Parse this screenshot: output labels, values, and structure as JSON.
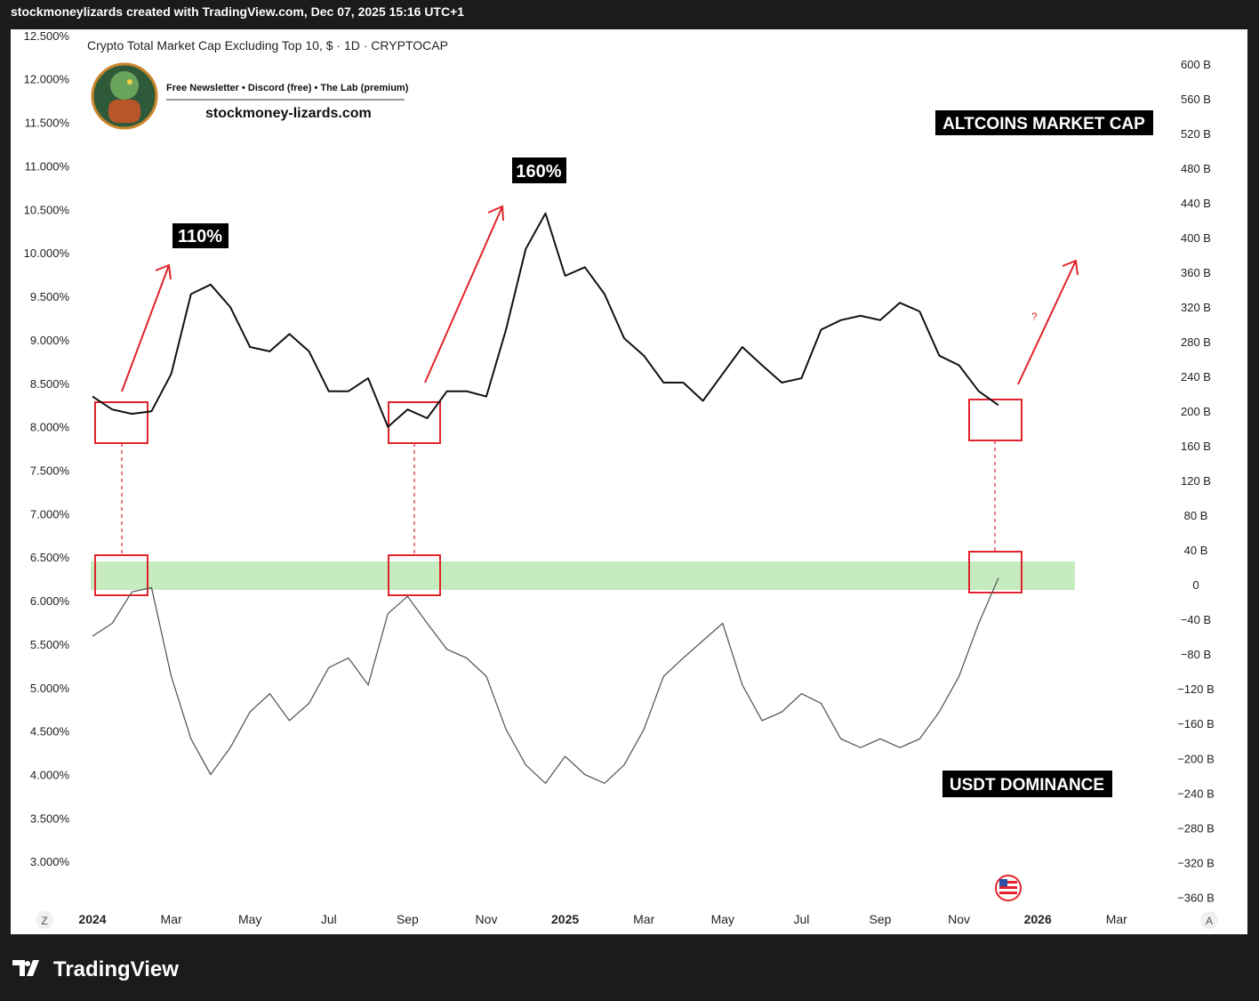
{
  "header": "stockmoneylizards created with TradingView.com, Dec 07, 2025 15:16 UTC+1",
  "footer": "TradingView",
  "controls": [
    "Z",
    "A"
  ],
  "chart_data": {
    "type": "line",
    "title": "Crypto Total Market Cap Excluding Top 10, $ · 1D · CRYPTOCAP",
    "subtitle": "Free Newsletter • Discord (free) • The Lab (premium)",
    "annotations": [
      "stockmoney-lizards.com",
      "ALTCOINS MARKET CAP",
      "110%",
      "160%",
      "USDT DOMINANCE",
      "?"
    ],
    "categories": [
      "2024",
      null,
      null,
      null,
      "Mar",
      null,
      null,
      null,
      "May",
      null,
      null,
      null,
      "Jul",
      null,
      null,
      null,
      "Sep",
      null,
      null,
      null,
      "Nov",
      null,
      null,
      null,
      "2025",
      null,
      null,
      null,
      "Mar",
      null,
      null,
      null,
      "May",
      null,
      null,
      null,
      "Jul",
      null,
      null,
      null,
      "Sep",
      null,
      null,
      null,
      "Nov",
      null,
      null,
      null,
      "2026",
      null,
      null,
      null,
      "Mar",
      null
    ],
    "series": [
      {
        "name": "ALTCOINS MARKET CAP",
        "color": "#111111",
        "axis": "y2",
        "values": [
          217,
          202,
          197,
          200,
          243,
          335,
          346,
          320,
          274,
          269,
          289,
          269,
          223,
          223,
          238,
          182,
          202,
          192,
          223,
          223,
          217,
          294,
          387,
          428,
          356,
          366,
          335,
          284,
          264,
          233,
          233,
          212,
          243,
          274,
          253,
          233,
          238,
          294,
          305,
          310,
          305,
          325,
          315,
          264,
          253,
          223,
          207,
          null,
          null,
          null,
          null,
          null,
          null,
          null
        ]
      },
      {
        "name": "USDT DOMINANCE",
        "color": "#5a5a5a",
        "values": [
          5.59,
          5.74,
          6.1,
          6.15,
          5.13,
          4.41,
          4.0,
          4.31,
          4.72,
          4.93,
          4.62,
          4.82,
          5.23,
          5.34,
          5.03,
          5.85,
          6.05,
          5.74,
          5.44,
          5.34,
          5.13,
          4.52,
          4.11,
          3.9,
          4.21,
          4.0,
          3.9,
          4.11,
          4.52,
          5.13,
          5.34,
          5.54,
          5.74,
          5.03,
          4.62,
          4.72,
          4.93,
          4.82,
          4.41,
          4.31,
          4.41,
          4.31,
          4.41,
          4.72,
          5.13,
          5.74,
          6.26,
          null,
          null,
          null,
          null,
          null,
          null,
          null
        ]
      }
    ],
    "ylim": [
      2.47,
      12.55
    ],
    "yticks": [
      {
        "value": 12.5,
        "label": "12.500%"
      },
      {
        "value": 12,
        "label": "12.000%"
      },
      {
        "value": 11.5,
        "label": "11.500%"
      },
      {
        "value": 11,
        "label": "11.000%"
      },
      {
        "value": 10.5,
        "label": "10.500%"
      },
      {
        "value": 10,
        "label": "10.000%"
      },
      {
        "value": 9.5,
        "label": "9.500%"
      },
      {
        "value": 9,
        "label": "9.000%"
      },
      {
        "value": 8.5,
        "label": "8.500%"
      },
      {
        "value": 8,
        "label": "8.000%"
      },
      {
        "value": 7.5,
        "label": "7.500%"
      },
      {
        "value": 7,
        "label": "7.000%"
      },
      {
        "value": 6.5,
        "label": "6.500%"
      },
      {
        "value": 6,
        "label": "6.000%"
      },
      {
        "value": 5.5,
        "label": "5.500%"
      },
      {
        "value": 5,
        "label": "5.000%"
      },
      {
        "value": 4.5,
        "label": "4.500%"
      },
      {
        "value": 4,
        "label": "4.000%"
      },
      {
        "value": 3.5,
        "label": "3.500%"
      },
      {
        "value": 3,
        "label": "3.000%"
      }
    ],
    "y2lim": [
      -372,
      638
    ],
    "y2ticks": [
      {
        "value": 600,
        "label": "600 B"
      },
      {
        "value": 560,
        "label": "560 B"
      },
      {
        "value": 520,
        "label": "520 B"
      },
      {
        "value": 480,
        "label": "480 B"
      },
      {
        "value": 440,
        "label": "440 B"
      },
      {
        "value": 400,
        "label": "400 B"
      },
      {
        "value": 360,
        "label": "360 B"
      },
      {
        "value": 320,
        "label": "320 B"
      },
      {
        "value": 280,
        "label": "280 B"
      },
      {
        "value": 240,
        "label": "240 B"
      },
      {
        "value": 200,
        "label": "200 B"
      },
      {
        "value": 160,
        "label": "160 B"
      },
      {
        "value": 120,
        "label": "120 B"
      },
      {
        "value": 80,
        "label": "80 B"
      },
      {
        "value": 40,
        "label": "40 B"
      },
      0,
      {
        "value": -40,
        "label": "−40 B"
      },
      {
        "value": -80,
        "label": "−80 B"
      },
      {
        "value": -120,
        "label": "−120 B"
      },
      {
        "value": -160,
        "label": "−160 B"
      },
      {
        "value": -200,
        "label": "−200 B"
      },
      {
        "value": -240,
        "label": "−240 B"
      },
      {
        "value": -280,
        "label": "−280 B"
      },
      {
        "value": -320,
        "label": "−320 B"
      },
      {
        "value": -360,
        "label": "−360 B"
      }
    ],
    "grid": false
  }
}
